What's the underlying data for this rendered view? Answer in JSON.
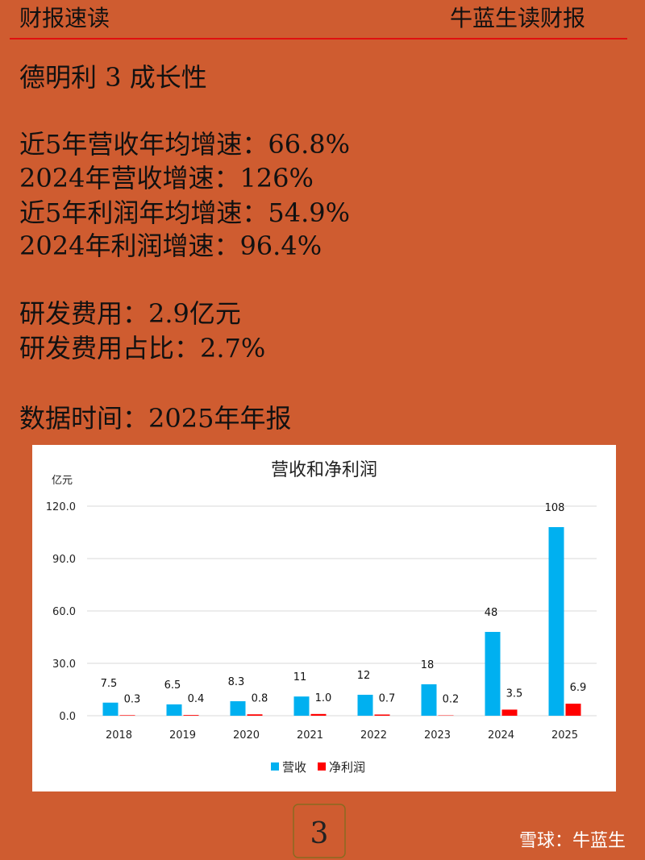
{
  "header": {
    "left": "财报速读",
    "right": "牛蓝生读财报"
  },
  "title": "德明利 3 成长性",
  "lines": [
    "近5年营收年均增速：66.8%",
    "2024年营收增速：126%",
    "近5年利润年均增速：54.9%",
    "2024年利润增速：96.4%",
    "研发费用：2.9亿元",
    "研发费用占比：2.7%",
    "数据时间：2025年年报"
  ],
  "chart_data": {
    "type": "bar",
    "title": "营收和净利润",
    "y_label": "亿元",
    "categories": [
      "2018",
      "2019",
      "2020",
      "2021",
      "2022",
      "2023",
      "2024",
      "2025"
    ],
    "series": [
      {
        "name": "营收",
        "color": "#00b0f0",
        "values": [
          7.5,
          6.5,
          8.3,
          11,
          12,
          18,
          48,
          108
        ]
      },
      {
        "name": "净利润",
        "color": "#ff0000",
        "values": [
          0.3,
          0.4,
          0.8,
          1.0,
          0.7,
          0.2,
          3.5,
          6.9
        ],
        "value_labels": [
          "0.3",
          "0.4",
          "0.8",
          "1.0",
          "0.7",
          "0.2",
          "3.5",
          "6.9"
        ]
      }
    ],
    "ylim": [
      0,
      120
    ],
    "yticks": [
      {
        "value": 0,
        "label": "0.0"
      },
      {
        "value": 30,
        "label": "30.0"
      },
      {
        "value": 60,
        "label": "60.0"
      },
      {
        "value": 90,
        "label": "90.0"
      },
      {
        "value": 120,
        "label": "120.0"
      }
    ],
    "grid": true,
    "legend": "bottom"
  },
  "page_number": "3",
  "watermark": "雪球：牛蓝生"
}
